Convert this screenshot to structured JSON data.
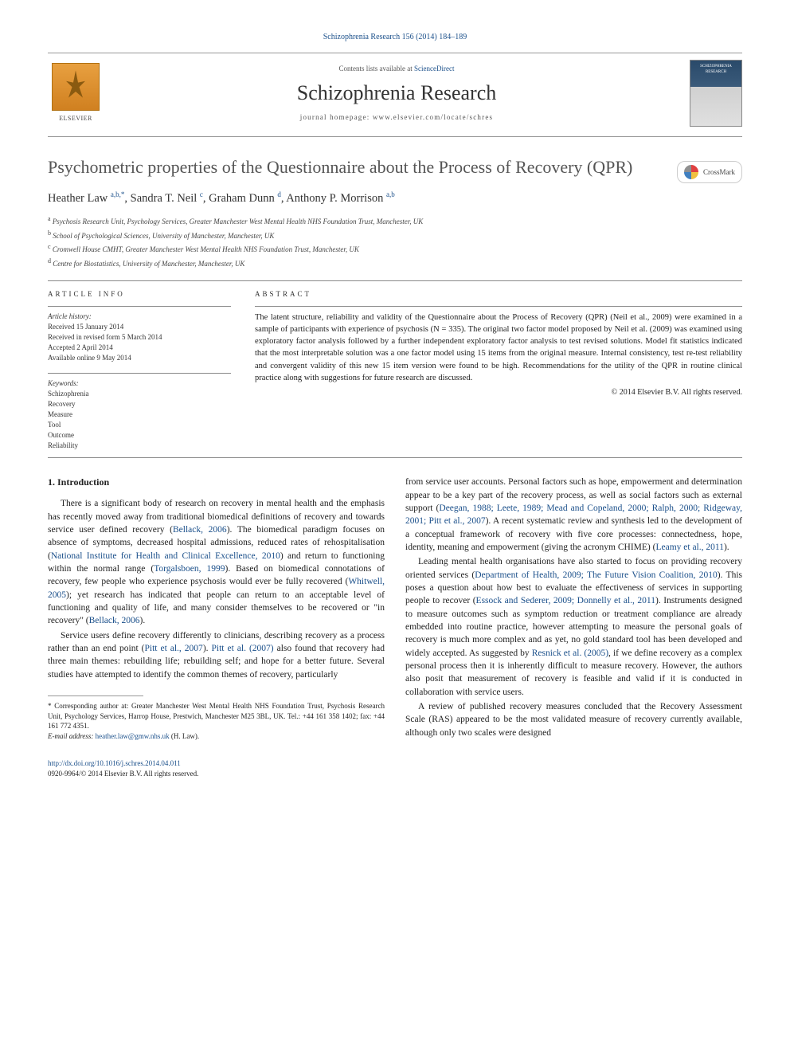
{
  "top_link": "Schizophrenia Research 156 (2014) 184–189",
  "masthead": {
    "elsevier": "ELSEVIER",
    "contents_prefix": "Contents lists available at ",
    "contents_link": "ScienceDirect",
    "journal": "Schizophrenia Research",
    "homepage_prefix": "journal homepage: ",
    "homepage": "www.elsevier.com/locate/schres",
    "cover_label": "SCHIZOPHRENIA RESEARCH"
  },
  "title": "Psychometric properties of the Questionnaire about the Process of Recovery (QPR)",
  "crossmark": "CrossMark",
  "authors": [
    {
      "name": "Heather Law",
      "affil": "a,b,",
      "star": "*"
    },
    {
      "name": "Sandra T. Neil",
      "affil": "c"
    },
    {
      "name": "Graham Dunn",
      "affil": "d"
    },
    {
      "name": "Anthony P. Morrison",
      "affil": "a,b"
    }
  ],
  "affiliations": [
    {
      "sup": "a",
      "text": "Psychosis Research Unit, Psychology Services, Greater Manchester West Mental Health NHS Foundation Trust, Manchester, UK"
    },
    {
      "sup": "b",
      "text": "School of Psychological Sciences, University of Manchester, Manchester, UK"
    },
    {
      "sup": "c",
      "text": "Cromwell House CMHT, Greater Manchester West Mental Health NHS Foundation Trust, Manchester, UK"
    },
    {
      "sup": "d",
      "text": "Centre for Biostatistics, University of Manchester, Manchester, UK"
    }
  ],
  "info": {
    "label": "article info",
    "history_label": "Article history:",
    "history": [
      "Received 15 January 2014",
      "Received in revised form 5 March 2014",
      "Accepted 2 April 2014",
      "Available online 9 May 2014"
    ],
    "kw_label": "Keywords:",
    "keywords": [
      "Schizophrenia",
      "Recovery",
      "Measure",
      "Tool",
      "Outcome",
      "Reliability"
    ]
  },
  "abstract": {
    "label": "abstract",
    "text": "The latent structure, reliability and validity of the Questionnaire about the Process of Recovery (QPR) (Neil et al., 2009) were examined in a sample of participants with experience of psychosis (N = 335). The original two factor model proposed by Neil et al. (2009) was examined using exploratory factor analysis followed by a further independent exploratory factor analysis to test revised solutions. Model fit statistics indicated that the most interpretable solution was a one factor model using 15 items from the original measure. Internal consistency, test re-test reliability and convergent validity of this new 15 item version were found to be high. Recommendations for the utility of the QPR in routine clinical practice along with suggestions for future research are discussed.",
    "copyright": "© 2014 Elsevier B.V. All rights reserved."
  },
  "body": {
    "heading": "1. Introduction",
    "left": [
      {
        "pre": "There is a significant body of research on recovery in mental health and the emphasis has recently moved away from traditional biomedical definitions of recovery and towards service user defined recovery (",
        "c1": "Bellack, 2006",
        "mid1": "). The biomedical paradigm focuses on absence of symptoms, decreased hospital admissions, reduced rates of rehospitalisation (",
        "c2": "National Institute for Health and Clinical Excellence, 2010",
        "mid2": ") and return to functioning within the normal range (",
        "c3": "Torgalsboen, 1999",
        "mid3": "). Based on biomedical connotations of recovery, few people who experience psychosis would ever be fully recovered (",
        "c4": "Whitwell, 2005",
        "mid4": "); yet research has indicated that people can return to an acceptable level of functioning and quality of life, and many consider themselves to be recovered or \"in recovery\" (",
        "c5": "Bellack, 2006",
        "post": ")."
      },
      {
        "pre": "Service users define recovery differently to clinicians, describing recovery as a process rather than an end point (",
        "c1": "Pitt et al., 2007",
        "mid1": "). ",
        "c2": "Pitt et al. (2007)",
        "mid2": " also found that recovery had three main themes: rebuilding life; rebuilding self; and hope for a better future. Several studies have attempted to identify the common themes of recovery, particularly"
      }
    ],
    "right": [
      {
        "pre": "from service user accounts. Personal factors such as hope, empowerment and determination appear to be a key part of the recovery process, as well as social factors such as external support (",
        "c1": "Deegan, 1988; Leete, 1989; Mead and Copeland, 2000; Ralph, 2000; Ridgeway, 2001; Pitt et al., 2007",
        "mid1": "). A recent systematic review and synthesis led to the development of a conceptual framework of recovery with five core processes: connectedness, hope, identity, meaning and empowerment (giving the acronym CHIME) (",
        "c2": "Leamy et al., 2011",
        "post": ")."
      },
      {
        "pre": "Leading mental health organisations have also started to focus on providing recovery oriented services (",
        "c1": "Department of Health, 2009; The Future Vision Coalition, 2010",
        "mid1": "). This poses a question about how best to evaluate the effectiveness of services in supporting people to recover (",
        "c2": "Essock and Sederer, 2009; Donnelly et al., 2011",
        "mid2": "). Instruments designed to measure outcomes such as symptom reduction or treatment compliance are already embedded into routine practice, however attempting to measure the personal goals of recovery is much more complex and as yet, no gold standard tool has been developed and widely accepted. As suggested by ",
        "c3": "Resnick et al. (2005)",
        "post": ", if we define recovery as a complex personal process then it is inherently difficult to measure recovery. However, the authors also posit that measurement of recovery is feasible and valid if it is conducted in collaboration with service users."
      },
      {
        "pre": "A review of published recovery measures concluded that the Recovery Assessment Scale (RAS) appeared to be the most validated measure of recovery currently available, although only two scales were designed"
      }
    ]
  },
  "footnote": {
    "corr_label": "* Corresponding author at: ",
    "corr_text": "Greater Manchester West Mental Health NHS Foundation Trust, Psychosis Research Unit, Psychology Services, Harrop House, Prestwich, Manchester M25 3BL, UK. Tel.: +44 161 358 1402; fax: +44 161 772 4351.",
    "email_label": "E-mail address: ",
    "email": "heather.law@gmw.nhs.uk",
    "email_suffix": " (H. Law)."
  },
  "footer": {
    "doi": "http://dx.doi.org/10.1016/j.schres.2014.04.011",
    "issn": "0920-9964/© 2014 Elsevier B.V. All rights reserved."
  },
  "colors": {
    "link": "#1a4f8a",
    "text": "#222222",
    "title_gray": "#555555",
    "rule": "#888888"
  }
}
